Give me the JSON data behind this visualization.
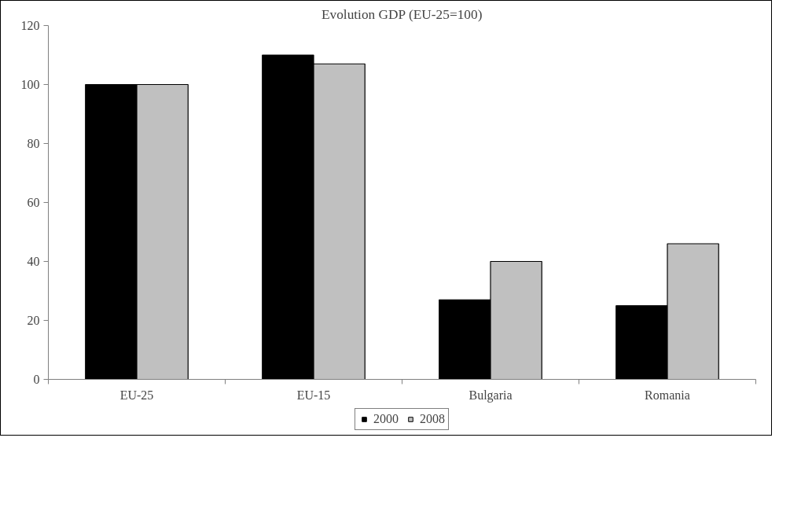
{
  "chart_data": {
    "type": "bar",
    "title": "Evolution GDP (EU-25=100)",
    "categories": [
      "EU-25",
      "EU-15",
      "Bulgaria",
      "Romania"
    ],
    "series": [
      {
        "name": "2000",
        "color": "#000000",
        "values": [
          100,
          110,
          27,
          25
        ]
      },
      {
        "name": "2008",
        "color": "#c0c0c0",
        "values": [
          100,
          107,
          40,
          46
        ]
      }
    ],
    "ylim": [
      0,
      120
    ],
    "yticks": [
      0,
      20,
      40,
      60,
      80,
      100,
      120
    ],
    "grid": false,
    "legend": "bottom"
  }
}
